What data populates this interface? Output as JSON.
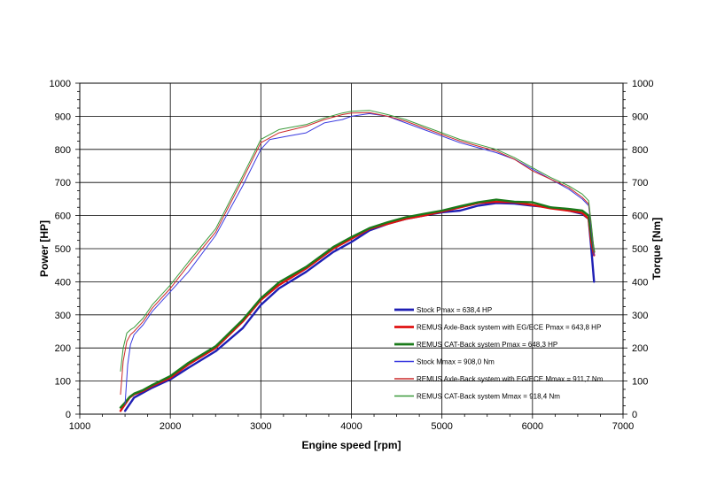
{
  "chart_data": {
    "type": "line",
    "xlabel": "Engine speed [rpm]",
    "ylabel_left": "Power [HP]",
    "ylabel_right": "Torque [Nm]",
    "xlim": [
      1000,
      7000
    ],
    "ylim": [
      0,
      1000
    ],
    "xticks": [
      "1000",
      "2000",
      "3000",
      "4000",
      "5000",
      "6000",
      "7000"
    ],
    "yticks_left": [
      "0",
      "100",
      "200",
      "300",
      "400",
      "500",
      "600",
      "700",
      "800",
      "900",
      "1000"
    ],
    "yticks_right": [
      "0",
      "100",
      "200",
      "300",
      "400",
      "500",
      "600",
      "700",
      "800",
      "900",
      "1000"
    ],
    "grid": true,
    "legend_position": "lower-right",
    "series": [
      {
        "name": "Stock Pmax = 638,4 HP",
        "color": "#1f1fb4",
        "width": 2.4,
        "x": [
          1500,
          1550,
          1600,
          1700,
          1800,
          2000,
          2200,
          2500,
          2800,
          3000,
          3200,
          3500,
          3800,
          4000,
          4200,
          4400,
          4600,
          4800,
          5000,
          5200,
          5400,
          5600,
          5800,
          6000,
          6200,
          6400,
          6550,
          6620,
          6650,
          6680
        ],
        "values": [
          10,
          30,
          50,
          65,
          80,
          105,
          140,
          190,
          260,
          330,
          380,
          430,
          490,
          520,
          555,
          575,
          590,
          600,
          610,
          615,
          630,
          638,
          636,
          630,
          625,
          615,
          605,
          590,
          500,
          400
        ]
      },
      {
        "name": "REMUS Axle-Back system with EG/ECE Pmax = 643,8 HP",
        "color": "#e01010",
        "width": 2.4,
        "x": [
          1450,
          1500,
          1550,
          1600,
          1700,
          1800,
          2000,
          2200,
          2500,
          2800,
          3000,
          3200,
          3500,
          3800,
          4000,
          4200,
          4400,
          4600,
          4800,
          5000,
          5200,
          5400,
          5600,
          5800,
          6000,
          6200,
          6400,
          6550,
          6620,
          6650,
          6680
        ],
        "values": [
          10,
          30,
          50,
          60,
          70,
          85,
          110,
          150,
          200,
          280,
          345,
          390,
          440,
          500,
          530,
          560,
          575,
          590,
          600,
          612,
          625,
          638,
          642,
          640,
          632,
          622,
          615,
          608,
          590,
          520,
          480
        ]
      },
      {
        "name": "REMUS CAT-Back system Pmax = 648,3 HP",
        "color": "#1a7a1a",
        "width": 2.4,
        "x": [
          1450,
          1500,
          1550,
          1600,
          1700,
          1800,
          2000,
          2200,
          2500,
          2800,
          3000,
          3200,
          3500,
          3800,
          4000,
          4200,
          4400,
          4600,
          4800,
          5000,
          5200,
          5400,
          5600,
          5800,
          6000,
          6200,
          6400,
          6550,
          6620,
          6650,
          6680
        ],
        "values": [
          20,
          35,
          52,
          62,
          73,
          88,
          115,
          155,
          205,
          285,
          350,
          398,
          445,
          505,
          535,
          562,
          580,
          595,
          605,
          615,
          628,
          640,
          648,
          642,
          640,
          625,
          620,
          615,
          600,
          540,
          490
        ]
      },
      {
        "name": "Stock Mmax = 908,0 Nm",
        "color": "#3a3ae0",
        "width": 1,
        "x": [
          1500,
          1530,
          1560,
          1600,
          1700,
          1800,
          2000,
          2200,
          2500,
          2800,
          3000,
          3100,
          3300,
          3500,
          3700,
          3900,
          4000,
          4200,
          4400,
          4600,
          4800,
          5000,
          5200,
          5400,
          5600,
          5800,
          6000,
          6200,
          6400,
          6550,
          6620,
          6650,
          6680
        ],
        "values": [
          30,
          150,
          210,
          240,
          270,
          310,
          370,
          430,
          540,
          690,
          800,
          830,
          840,
          850,
          880,
          890,
          900,
          908,
          900,
          880,
          860,
          840,
          820,
          805,
          790,
          770,
          740,
          710,
          680,
          650,
          630,
          560,
          480
        ]
      },
      {
        "name": "REMUS Axle-Back system with EG/ECE Mmax = 911,7 Nm",
        "color": "#cc2a2a",
        "width": 1,
        "x": [
          1450,
          1480,
          1520,
          1560,
          1600,
          1700,
          1800,
          2000,
          2200,
          2500,
          2800,
          3000,
          3200,
          3500,
          3700,
          3900,
          4000,
          4200,
          4400,
          4600,
          4800,
          5000,
          5200,
          5400,
          5600,
          5800,
          6000,
          6200,
          6400,
          6550,
          6620,
          6650,
          6680
        ],
        "values": [
          60,
          160,
          220,
          240,
          250,
          280,
          320,
          380,
          450,
          550,
          710,
          820,
          850,
          870,
          890,
          905,
          910,
          911,
          900,
          885,
          865,
          845,
          825,
          810,
          795,
          770,
          735,
          710,
          685,
          655,
          635,
          570,
          490
        ]
      },
      {
        "name": "REMUS CAT-Back system Mmax = 918,4 Nm",
        "color": "#3a9a3a",
        "width": 1,
        "x": [
          1450,
          1480,
          1520,
          1560,
          1600,
          1700,
          1800,
          2000,
          2200,
          2500,
          2800,
          3000,
          3200,
          3500,
          3700,
          3900,
          4000,
          4200,
          4400,
          4600,
          4800,
          5000,
          5200,
          5400,
          5600,
          5800,
          6000,
          6200,
          6400,
          6550,
          6620,
          6650,
          6680
        ],
        "values": [
          130,
          200,
          245,
          255,
          262,
          290,
          330,
          390,
          460,
          560,
          720,
          830,
          860,
          875,
          895,
          910,
          915,
          918,
          905,
          890,
          870,
          850,
          830,
          815,
          800,
          775,
          745,
          715,
          690,
          665,
          645,
          575,
          495
        ]
      }
    ]
  }
}
